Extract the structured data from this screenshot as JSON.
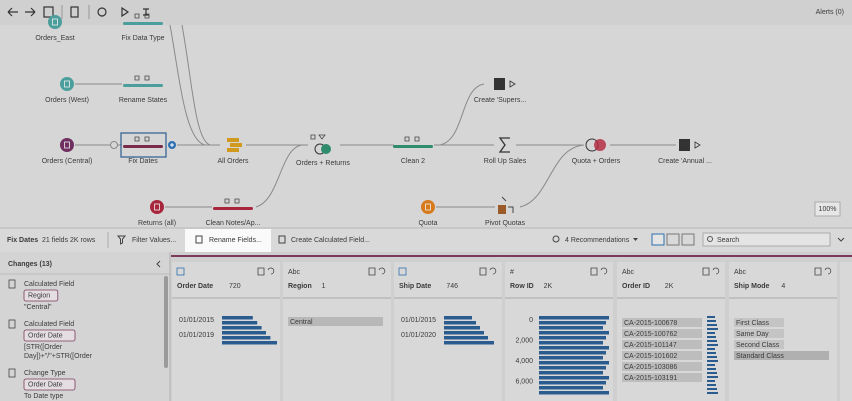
{
  "toolbar": {
    "alerts": "Alerts (0)"
  },
  "flow": {
    "nodes": [
      {
        "label": "Orders_East"
      },
      {
        "label": "Fix Data Type"
      },
      {
        "label": "Orders (West)"
      },
      {
        "label": "Rename States"
      },
      {
        "label": "Orders (Central)"
      },
      {
        "label": "Fix Dates"
      },
      {
        "label": "All Orders"
      },
      {
        "label": "Orders + Returns"
      },
      {
        "label": "Clean 2"
      },
      {
        "label": "Roll Up Sales"
      },
      {
        "label": "Quota + Orders"
      },
      {
        "label": "Create 'Annual ..."
      },
      {
        "label": "Create 'Supers..."
      },
      {
        "label": "Returns (all)"
      },
      {
        "label": "Clean Notes/Ap..."
      },
      {
        "label": "Quota"
      },
      {
        "label": "Pivot Quotas"
      }
    ],
    "zoom": "100%"
  },
  "step_bar": {
    "step": "Fix Dates",
    "summary": "21 fields  2K rows",
    "actions": [
      "Filter Values...",
      "Rename Fields...",
      "Create Calculated Field..."
    ],
    "recommendations": "4 Recommendations",
    "search": "Search"
  },
  "changes": {
    "title": "Changes (13)",
    "items": [
      {
        "type": "Calculated Field",
        "field": "Region",
        "detail": [
          "\"Central\""
        ]
      },
      {
        "type": "Calculated Field",
        "field": "Order Date",
        "detail": [
          "[STR([Order",
          "Day])+\"/\"+STR([Order"
        ]
      },
      {
        "type": "Change Type",
        "field": "Order Date",
        "detail": [
          "To Date type"
        ]
      }
    ]
  },
  "profile": {
    "columns": [
      {
        "name": "Order Date",
        "count": "720",
        "values": [
          "01/01/2015",
          "01/01/2019"
        ]
      },
      {
        "type_label": "Abc",
        "name": "Region",
        "count": "1",
        "values": [
          "Central"
        ]
      },
      {
        "name": "Ship Date",
        "count": "746",
        "values": [
          "01/01/2015",
          "01/01/2020"
        ]
      },
      {
        "type_label": "#",
        "name": "Row ID",
        "count": "2K",
        "values": [
          "0",
          "2,000",
          "4,000",
          "6,000"
        ]
      },
      {
        "type_label": "Abc",
        "name": "Order ID",
        "count": "2K",
        "values": [
          "CA-2015-100678",
          "CA-2015-100762",
          "CA-2015-101147",
          "CA-2015-101602",
          "CA-2015-103086",
          "CA-2015-103191"
        ]
      },
      {
        "type_label": "Abc",
        "name": "Ship Mode",
        "count": "4",
        "values": [
          "First Class",
          "Same Day",
          "Second Class",
          "Standard Class"
        ]
      }
    ]
  }
}
